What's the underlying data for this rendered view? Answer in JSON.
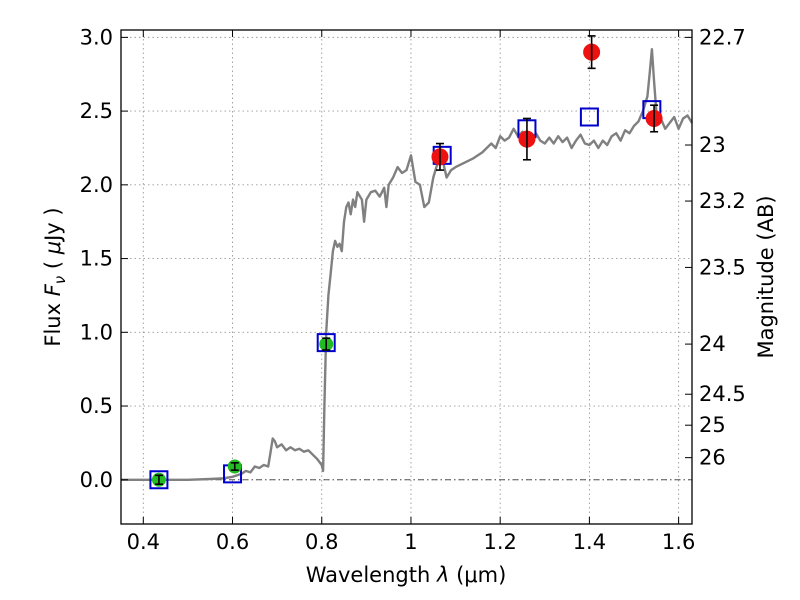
{
  "chart_data": {
    "type": "scatter",
    "title": "",
    "xlabel": "Wavelength  λ (μm)",
    "ylabel": "Flux  F_ν  ( μJy )",
    "ylabel_parts": {
      "prefix": "Flux  ",
      "symbol": "F",
      "subscript": "ν",
      "unit_open": "  ( ",
      "unit_mu": "μ",
      "unit_rest": "Jy )"
    },
    "xlabel_parts": {
      "prefix": "Wavelength  ",
      "symbol": "λ",
      "unit": " (μm)"
    },
    "y2label": "Magnitude (AB)",
    "xlim": [
      0.35,
      1.63
    ],
    "ylim": [
      -0.3,
      3.05
    ],
    "xticks": [
      0.4,
      0.6,
      0.8,
      1.0,
      1.2,
      1.4,
      1.6
    ],
    "xtick_labels": [
      "0.4",
      "0.6",
      "0.8",
      "1",
      "1.2",
      "1.4",
      "1.6"
    ],
    "yticks": [
      0.0,
      0.5,
      1.0,
      1.5,
      2.0,
      2.5,
      3.0
    ],
    "ytick_labels": [
      "0.0",
      "0.5",
      "1.0",
      "1.5",
      "2.0",
      "2.5",
      "3.0"
    ],
    "y2ticks": [
      {
        "label": "22.7",
        "flux": 3.0
      },
      {
        "label": "23",
        "flux": 2.27
      },
      {
        "label": "23.2",
        "flux": 1.89
      },
      {
        "label": "23.5",
        "flux": 1.44
      },
      {
        "label": "24",
        "flux": 0.92
      },
      {
        "label": "24.5",
        "flux": 0.58
      },
      {
        "label": "25",
        "flux": 0.37
      },
      {
        "label": "26",
        "flux": 0.15
      }
    ],
    "grid": true,
    "zero_line": true,
    "colors": {
      "model": "#808080",
      "model_photometry": "#0000cc",
      "optical_points": "#22bb22",
      "nir_points": "#ee1111",
      "errorbar": "#000000",
      "grid": "#999999"
    },
    "series": [
      {
        "kind": "model-spectrum",
        "points": [
          [
            0.35,
            0.0
          ],
          [
            0.5,
            0.0
          ],
          [
            0.55,
            0.005
          ],
          [
            0.58,
            0.01
          ],
          [
            0.6,
            0.02
          ],
          [
            0.62,
            0.04
          ],
          [
            0.63,
            0.06
          ],
          [
            0.64,
            0.05
          ],
          [
            0.65,
            0.09
          ],
          [
            0.66,
            0.08
          ],
          [
            0.67,
            0.1
          ],
          [
            0.68,
            0.09
          ],
          [
            0.685,
            0.18
          ],
          [
            0.69,
            0.28
          ],
          [
            0.695,
            0.26
          ],
          [
            0.7,
            0.22
          ],
          [
            0.71,
            0.24
          ],
          [
            0.72,
            0.2
          ],
          [
            0.73,
            0.22
          ],
          [
            0.74,
            0.2
          ],
          [
            0.75,
            0.21
          ],
          [
            0.76,
            0.19
          ],
          [
            0.77,
            0.2
          ],
          [
            0.78,
            0.17
          ],
          [
            0.79,
            0.14
          ],
          [
            0.8,
            0.1
          ],
          [
            0.803,
            0.06
          ],
          [
            0.806,
            0.5
          ],
          [
            0.81,
            1.0
          ],
          [
            0.815,
            1.25
          ],
          [
            0.82,
            1.4
          ],
          [
            0.825,
            1.55
          ],
          [
            0.83,
            1.62
          ],
          [
            0.835,
            1.58
          ],
          [
            0.84,
            1.6
          ],
          [
            0.845,
            1.55
          ],
          [
            0.85,
            1.75
          ],
          [
            0.855,
            1.85
          ],
          [
            0.86,
            1.88
          ],
          [
            0.865,
            1.8
          ],
          [
            0.87,
            1.9
          ],
          [
            0.875,
            1.85
          ],
          [
            0.88,
            1.95
          ],
          [
            0.89,
            1.9
          ],
          [
            0.895,
            1.75
          ],
          [
            0.9,
            1.9
          ],
          [
            0.91,
            1.95
          ],
          [
            0.92,
            1.96
          ],
          [
            0.93,
            1.92
          ],
          [
            0.94,
            1.98
          ],
          [
            0.945,
            1.85
          ],
          [
            0.95,
            2.0
          ],
          [
            0.96,
            2.05
          ],
          [
            0.97,
            2.12
          ],
          [
            0.98,
            2.08
          ],
          [
            0.99,
            2.1
          ],
          [
            1.0,
            2.2
          ],
          [
            1.01,
            2.02
          ],
          [
            1.02,
            2.0
          ],
          [
            1.03,
            1.85
          ],
          [
            1.04,
            1.88
          ],
          [
            1.05,
            2.05
          ],
          [
            1.06,
            2.15
          ],
          [
            1.07,
            2.18
          ],
          [
            1.08,
            2.05
          ],
          [
            1.09,
            2.1
          ],
          [
            1.1,
            2.12
          ],
          [
            1.12,
            2.15
          ],
          [
            1.14,
            2.18
          ],
          [
            1.16,
            2.22
          ],
          [
            1.18,
            2.28
          ],
          [
            1.19,
            2.25
          ],
          [
            1.2,
            2.33
          ],
          [
            1.21,
            2.3
          ],
          [
            1.22,
            2.32
          ],
          [
            1.23,
            2.38
          ],
          [
            1.24,
            2.33
          ],
          [
            1.25,
            2.36
          ],
          [
            1.26,
            2.32
          ],
          [
            1.27,
            2.28
          ],
          [
            1.28,
            2.35
          ],
          [
            1.29,
            2.3
          ],
          [
            1.3,
            2.28
          ],
          [
            1.31,
            2.32
          ],
          [
            1.32,
            2.28
          ],
          [
            1.33,
            2.33
          ],
          [
            1.34,
            2.29
          ],
          [
            1.35,
            2.32
          ],
          [
            1.36,
            2.25
          ],
          [
            1.37,
            2.3
          ],
          [
            1.38,
            2.34
          ],
          [
            1.39,
            2.28
          ],
          [
            1.4,
            2.27
          ],
          [
            1.41,
            2.3
          ],
          [
            1.42,
            2.25
          ],
          [
            1.43,
            2.3
          ],
          [
            1.44,
            2.27
          ],
          [
            1.45,
            2.33
          ],
          [
            1.46,
            2.35
          ],
          [
            1.47,
            2.3
          ],
          [
            1.48,
            2.37
          ],
          [
            1.49,
            2.35
          ],
          [
            1.5,
            2.4
          ],
          [
            1.51,
            2.43
          ],
          [
            1.52,
            2.5
          ],
          [
            1.53,
            2.6
          ],
          [
            1.535,
            2.75
          ],
          [
            1.54,
            2.92
          ],
          [
            1.545,
            2.7
          ],
          [
            1.55,
            2.5
          ],
          [
            1.56,
            2.45
          ],
          [
            1.57,
            2.38
          ],
          [
            1.58,
            2.42
          ],
          [
            1.59,
            2.46
          ],
          [
            1.6,
            2.38
          ],
          [
            1.61,
            2.45
          ],
          [
            1.62,
            2.47
          ],
          [
            1.63,
            2.42
          ]
        ]
      },
      {
        "kind": "model-photometry",
        "marker": "open-square",
        "points": [
          [
            0.435,
            0.0
          ],
          [
            0.6,
            0.04
          ],
          [
            0.81,
            0.93
          ],
          [
            1.07,
            2.2
          ],
          [
            1.26,
            2.38
          ],
          [
            1.4,
            2.46
          ],
          [
            1.54,
            2.51
          ]
        ]
      },
      {
        "kind": "observed-optical",
        "marker": "filled-circle",
        "points": [
          {
            "x": 0.435,
            "y": 0.0,
            "err": 0.03
          },
          {
            "x": 0.605,
            "y": 0.09,
            "err": 0.025
          },
          {
            "x": 0.81,
            "y": 0.92,
            "err": 0.04
          }
        ]
      },
      {
        "kind": "observed-nir",
        "marker": "filled-circle",
        "points": [
          {
            "x": 1.065,
            "y": 2.19,
            "err": 0.09
          },
          {
            "x": 1.26,
            "y": 2.31,
            "err": 0.14
          },
          {
            "x": 1.405,
            "y": 2.9,
            "err": 0.11
          },
          {
            "x": 1.545,
            "y": 2.45,
            "err": 0.09
          }
        ]
      }
    ]
  }
}
